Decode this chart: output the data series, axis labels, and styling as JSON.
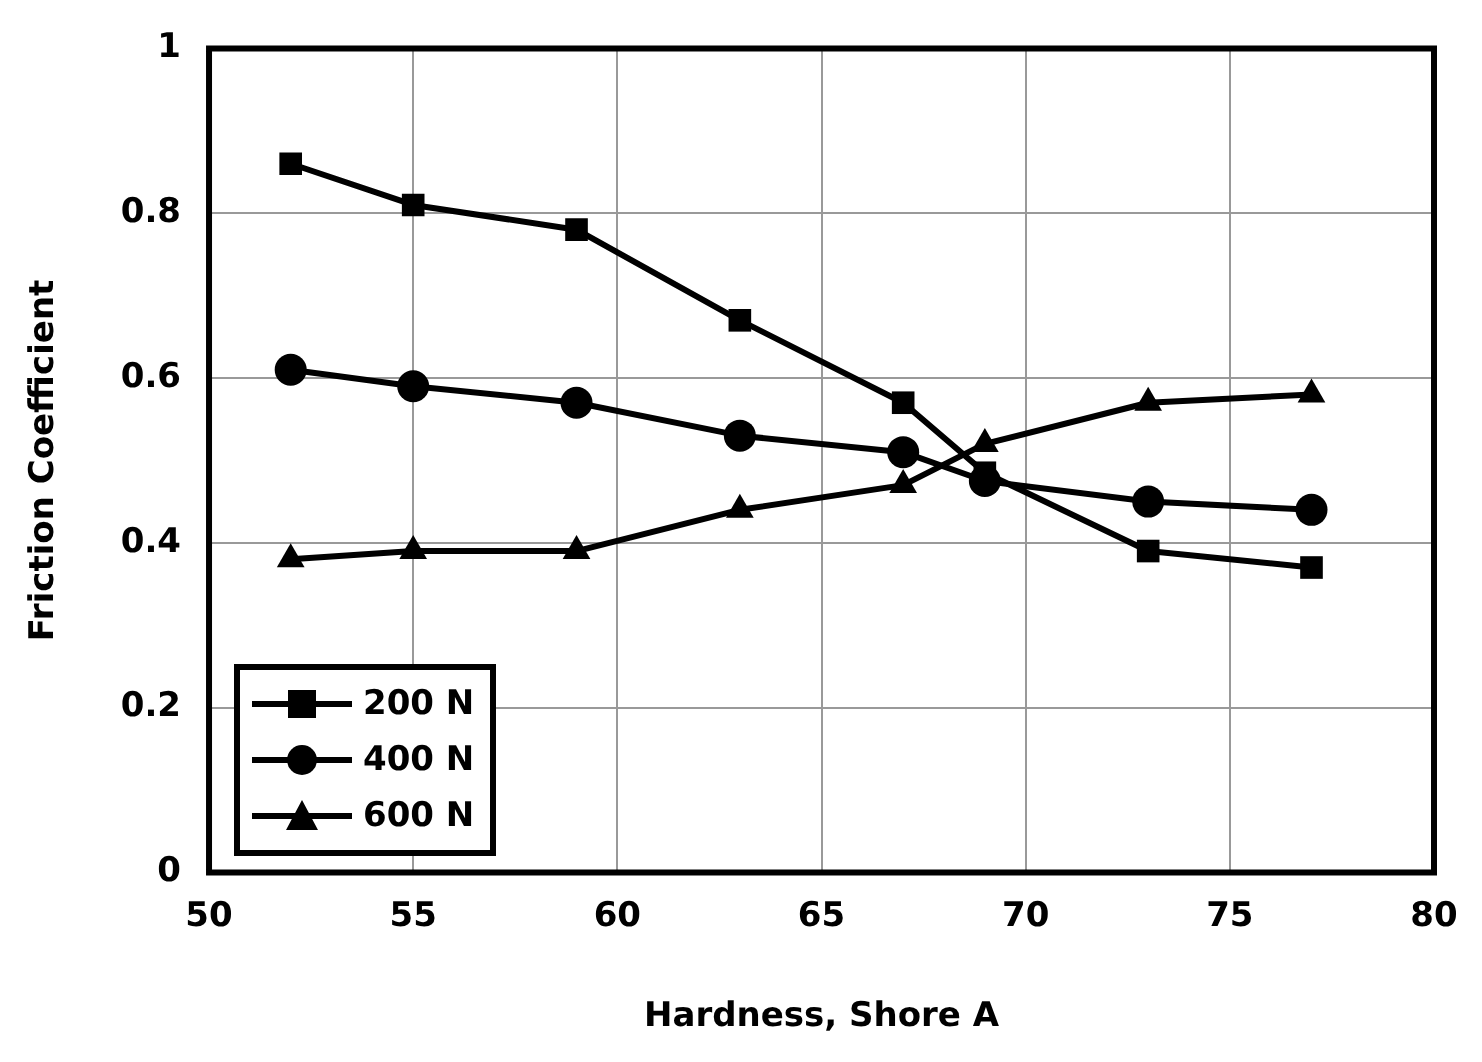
{
  "chart_data": {
    "type": "line",
    "xlabel": "Hardness, Shore A",
    "ylabel": "Friction Coefficient",
    "x": [
      52,
      55,
      59,
      63,
      67,
      69,
      73,
      77
    ],
    "series": [
      {
        "name": "200 N",
        "color": "#000000",
        "marker": "square",
        "values": [
          0.86,
          0.81,
          0.78,
          0.67,
          0.57,
          0.485,
          0.39,
          0.37
        ]
      },
      {
        "name": "400 N",
        "color": "#000000",
        "marker": "circle",
        "values": [
          0.61,
          0.59,
          0.57,
          0.53,
          0.51,
          0.475,
          0.45,
          0.44
        ]
      },
      {
        "name": "600 N",
        "color": "#000000",
        "marker": "triangle",
        "values": [
          0.38,
          0.39,
          0.39,
          0.44,
          0.47,
          0.52,
          0.57,
          0.58
        ]
      }
    ],
    "xlim": [
      50,
      80
    ],
    "xticks": [
      50,
      55,
      60,
      65,
      70,
      75,
      80
    ],
    "ylim": [
      0,
      1
    ],
    "yticks": [
      0,
      0.2,
      0.4,
      0.6,
      0.8,
      1
    ],
    "grid": true,
    "legend": "bottom left",
    "line_style": "solid"
  }
}
